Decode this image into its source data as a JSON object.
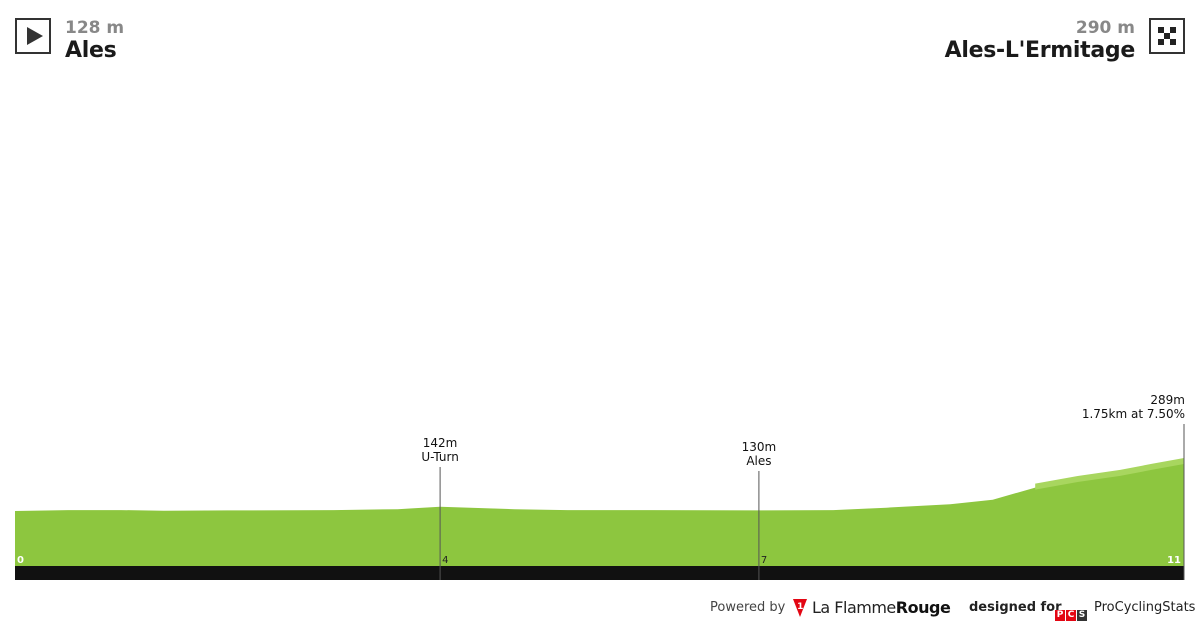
{
  "start": {
    "elevation": "128 m",
    "name": "Ales",
    "icon": "play-icon"
  },
  "finish": {
    "elevation": "290 m",
    "name": "Ales-L'Ermitage",
    "icon": "checkered-flag-icon"
  },
  "chart_data": {
    "type": "area",
    "x_unit": "km",
    "y_unit": "m",
    "xlim": [
      0,
      11
    ],
    "ylim": [
      100,
      650
    ],
    "fill_color": "#8dc63f",
    "climb_highlight_color": "#a8d65f",
    "baseline_color": "#111111",
    "profile": [
      {
        "x": 0,
        "y": 128
      },
      {
        "x": 0.5,
        "y": 131
      },
      {
        "x": 1,
        "y": 131
      },
      {
        "x": 1.4,
        "y": 129
      },
      {
        "x": 2,
        "y": 130
      },
      {
        "x": 3,
        "y": 131
      },
      {
        "x": 3.6,
        "y": 134
      },
      {
        "x": 4,
        "y": 142
      },
      {
        "x": 4.7,
        "y": 134
      },
      {
        "x": 5.2,
        "y": 131
      },
      {
        "x": 6,
        "y": 131
      },
      {
        "x": 7,
        "y": 130
      },
      {
        "x": 7.7,
        "y": 131
      },
      {
        "x": 8.2,
        "y": 139
      },
      {
        "x": 8.8,
        "y": 150
      },
      {
        "x": 9.2,
        "y": 165
      },
      {
        "x": 9.6,
        "y": 205
      },
      {
        "x": 10,
        "y": 230
      },
      {
        "x": 10.4,
        "y": 250
      },
      {
        "x": 10.7,
        "y": 270
      },
      {
        "x": 11,
        "y": 289
      }
    ],
    "x_ticks": [
      {
        "km": 0,
        "label": "0"
      },
      {
        "km": 4,
        "label": "4"
      },
      {
        "km": 7,
        "label": "7"
      },
      {
        "km": 11,
        "label": "11"
      }
    ],
    "annotations": [
      {
        "km": 4,
        "elevation_label": "142m",
        "name": "U-Turn"
      },
      {
        "km": 7,
        "elevation_label": "130m",
        "name": "Ales"
      },
      {
        "km": 11,
        "elevation_label": "289m",
        "name": "1.75km at 7.50%"
      }
    ]
  },
  "footer": {
    "powered_by": "Powered by",
    "flamme_logo_mark": "1",
    "flamme_la": "La Flamme",
    "flamme_rouge": "Rouge",
    "designed_for": "designed for",
    "pcs_badge": [
      "P",
      "C",
      "S"
    ],
    "pcs_name": "ProCyclingStats",
    "brand_red": "#e30613"
  }
}
